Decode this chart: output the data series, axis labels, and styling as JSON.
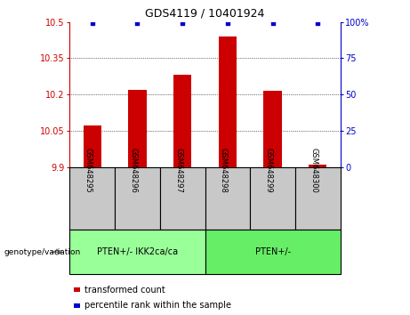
{
  "title": "GDS4119 / 10401924",
  "categories": [
    "GSM648295",
    "GSM648296",
    "GSM648297",
    "GSM648298",
    "GSM648299",
    "GSM648300"
  ],
  "bar_values": [
    10.07,
    10.22,
    10.28,
    10.44,
    10.215,
    9.91
  ],
  "percentile_values": [
    99,
    99,
    99,
    99,
    99,
    99
  ],
  "bar_color": "#cc0000",
  "percentile_color": "#0000cc",
  "ylim_left": [
    9.9,
    10.5
  ],
  "ylim_right": [
    0,
    100
  ],
  "yticks_left": [
    9.9,
    10.05,
    10.2,
    10.35,
    10.5
  ],
  "yticks_right": [
    0,
    25,
    50,
    75,
    100
  ],
  "ytick_labels_left": [
    "9.9",
    "10.05",
    "10.2",
    "10.35",
    "10.5"
  ],
  "ytick_labels_right": [
    "0",
    "25",
    "50",
    "75",
    "100%"
  ],
  "group1_label": "PTEN+/- IKK2ca/ca",
  "group2_label": "PTEN+/-",
  "group1_color": "#99ff99",
  "group2_color": "#66ee66",
  "group_row_label": "genotype/variation",
  "legend_bar_label": "transformed count",
  "legend_pct_label": "percentile rank within the sample",
  "tick_label_color_left": "#cc0000",
  "tick_label_color_right": "#0000cc",
  "base_value": 9.9,
  "bar_width": 0.4,
  "gray_bg": "#c8c8c8"
}
